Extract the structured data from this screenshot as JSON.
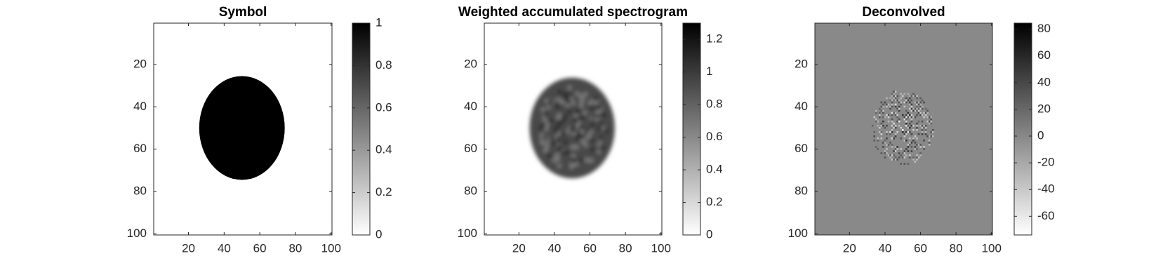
{
  "chart_data": [
    {
      "type": "image",
      "title": "Symbol",
      "xlim": [
        0.5,
        100.5
      ],
      "ylim": [
        0.5,
        100.5
      ],
      "xticks": [
        20,
        40,
        60,
        80,
        100
      ],
      "yticks": [
        20,
        40,
        60,
        80,
        100
      ],
      "y_reversed": true,
      "clim": [
        0,
        1
      ],
      "cticks": [
        0,
        0.2,
        0.4,
        0.6,
        0.8,
        1
      ],
      "colormap": [
        "#ffffff",
        "#000000"
      ]
    },
    {
      "type": "image",
      "title": "Weighted accumulated spectrogram",
      "xlim": [
        0.5,
        100.5
      ],
      "ylim": [
        0.5,
        100.5
      ],
      "xticks": [
        20,
        40,
        60,
        80,
        100
      ],
      "yticks": [
        20,
        40,
        60,
        80,
        100
      ],
      "y_reversed": true,
      "clim": [
        0,
        1.3
      ],
      "cticks": [
        0,
        0.2,
        0.4,
        0.6,
        0.8,
        1,
        1.2
      ],
      "colormap": [
        "#ffffff",
        "#000000"
      ]
    },
    {
      "type": "image",
      "title": "Deconvolved",
      "xlim": [
        0.5,
        100.5
      ],
      "ylim": [
        0.5,
        100.5
      ],
      "xticks": [
        20,
        40,
        60,
        80,
        100
      ],
      "yticks": [
        20,
        40,
        60,
        80,
        100
      ],
      "y_reversed": true,
      "clim": [
        -74,
        84.5
      ],
      "cticks": [
        -60,
        -40,
        -20,
        0,
        20,
        40,
        60,
        80
      ],
      "colormap": [
        "#ffffff",
        "#000000"
      ]
    }
  ]
}
